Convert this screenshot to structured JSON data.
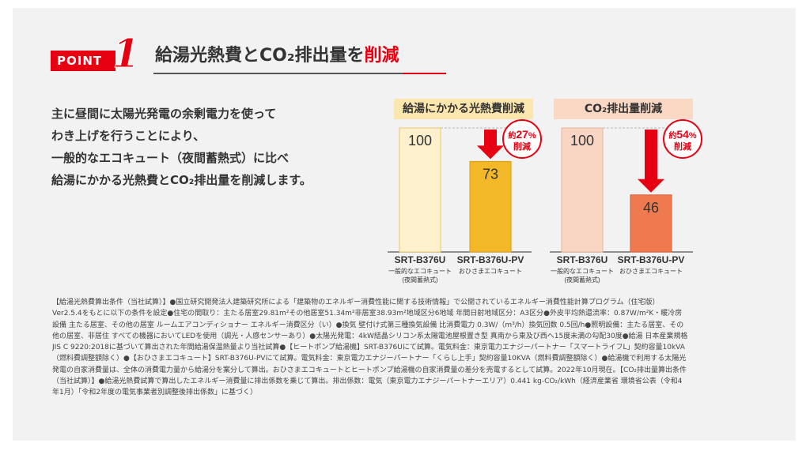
{
  "point": {
    "label": "POINT",
    "number": "1"
  },
  "headline": {
    "main": "給湯光熱費とCO₂排出量を",
    "emphasis": "削減"
  },
  "body": {
    "lines": [
      "主に昼間に太陽光発電の余剰電力を使って",
      "わき上げを行うことにより、",
      "一般的なエコキュート（夜間蓄熱式）に比べ",
      "給湯にかかる光熱費とCO₂排出量を削減します。"
    ]
  },
  "colors": {
    "accent_red": "#e60012",
    "cost_title_bg": "#fbe6ad",
    "co2_title_bg": "#fbd8c4",
    "cost_baseline_bar": "#fdf1cd",
    "cost_pv_bar": "#f2b828",
    "co2_baseline_bar": "#f9d5c4",
    "co2_pv_bar": "#ef7a4f"
  },
  "chart_data": [
    {
      "type": "bar",
      "title": "給湯にかかる光熱費削減",
      "categories": [
        "SRT-B376U",
        "SRT-B376U-PV"
      ],
      "category_sublabels": [
        "一般的なエコキュート\n(夜間蓄熱式)",
        "おひさまエコキュート"
      ],
      "values": [
        100,
        73
      ],
      "annotation": {
        "prefix": "約",
        "value": "27",
        "unit": "%",
        "suffix": "削減"
      },
      "ylim": [
        0,
        100
      ]
    },
    {
      "type": "bar",
      "title": "CO₂排出量削減",
      "categories": [
        "SRT-B376U",
        "SRT-B376U-PV"
      ],
      "category_sublabels": [
        "一般的なエコキュート\n(夜間蓄熱式)",
        "おひさまエコキュート"
      ],
      "values": [
        100,
        46
      ],
      "annotation": {
        "prefix": "約",
        "value": "54",
        "unit": "%",
        "suffix": "削減"
      },
      "ylim": [
        0,
        100
      ]
    }
  ],
  "notes": {
    "lines": [
      "【給湯光熱費算出条件（当社試算）】●国立研究開発法人建築研究所による「建築物のエネルギー消費性能に関する技術情報」で公開されているエネルギー消費性能計算プログラム（住宅版）",
      "Ver2.5.4をもとに以下の条件を設定●住宅の間取り：主たる居室29.81m²その他居室51.34m²非居室38.93m²地域区分6地域 年間日射地域区分：A3区分●外皮平均熱還流率：0.87W/m²K・暖冷房",
      "設備 主たる居室、その他の居室 ルームエアコンディショナー エネルギー消費区分（い）●換気 壁付け式第三種換気設備 比消費電力 0.3W/（m³/h）換気回数 0.5回/h●照明設備：主たる居室、その",
      "他の居室、非居住 すべての機器においてLEDを使用（調光・人感センサーあり）●太陽光発電：4kW結晶シリコン系太陽電池屋根置き型 真南から東及び西へ15度未満の勾配30度●給湯 日本産業規格",
      "JIS C 9220:2018に基づいて算出された年間給湯保温熱量より当社試算●【ヒートポンプ給湯機】SRT-B376Uにて試算。電気料金：東京電力エナジーパートナー「スマートライフL」契約容量10kVA",
      "（燃料費調整額除く）●【おひさまエコキュート】SRT-B376U-PVにて試算。電気料金：東京電力エナジーパートナー「くらし上手」契約容量10KVA（燃料費調整額除く）●給湯機で利用する太陽光",
      "発電の自家消費量は、全体の消費電力量から給湯分を案分して算出。おひさまエコキュートとヒートポンプ給湯機の自家消費量の差分を売電するとして試算。2022年10月現在。【CO₂排出量算出条件",
      "（当社試算）】●給湯光熱費試算で算出したエネルギー消費量に排出係数を乗じて算出。排出係数：電気（東京電力エナジーパートナーエリア）0.441 kg-CO₂/kWh（経済産業省 環境省公表（令和4",
      "年1月）「令和2年度の電気事業者別調整後排出係数」に基づく）"
    ]
  }
}
